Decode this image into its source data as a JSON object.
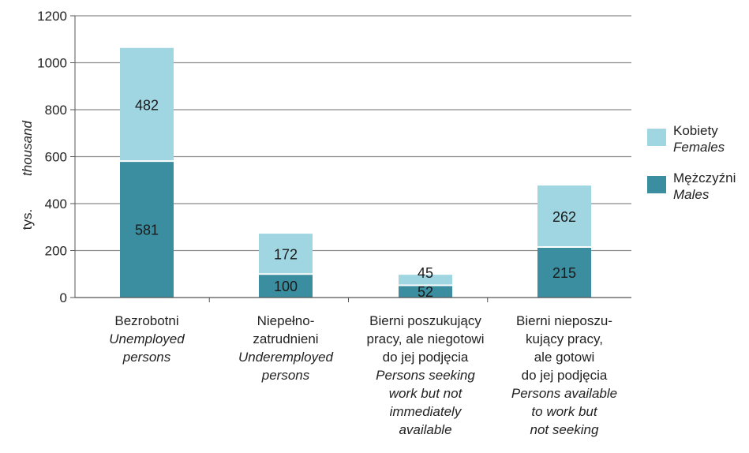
{
  "chart_data": {
    "type": "bar",
    "stacked": true,
    "ylabel": "tys.",
    "ylabel_en": "thousand",
    "ylim": [
      0,
      1200
    ],
    "yticks": [
      0,
      200,
      400,
      600,
      800,
      1000,
      1200
    ],
    "grid": true,
    "legend_position": "right",
    "categories": [
      {
        "pl": [
          "Bezrobotni"
        ],
        "en": [
          "Unemployed",
          "persons"
        ]
      },
      {
        "pl": [
          "Niepełno-",
          "zatrudnieni"
        ],
        "en": [
          "Underemployed",
          "persons"
        ]
      },
      {
        "pl": [
          "Bierni poszukujący",
          "pracy, ale niegotowi",
          "do jej podjęcia"
        ],
        "en": [
          "Persons seeking",
          "work but not",
          "immediately",
          "available"
        ]
      },
      {
        "pl": [
          "Bierni nieposzu-",
          "kujący pracy,",
          "ale gotowi",
          "do jej podjęcia"
        ],
        "en": [
          "Persons available",
          "to work but",
          "not seeking"
        ]
      }
    ],
    "series": [
      {
        "name": "Mężczyźni",
        "name_en": "Males",
        "color": "#3a8ea0",
        "values": [
          581,
          100,
          52,
          215
        ]
      },
      {
        "name": "Kobiety",
        "name_en": "Females",
        "color": "#9fd6e2",
        "values": [
          482,
          172,
          45,
          262
        ]
      }
    ]
  }
}
